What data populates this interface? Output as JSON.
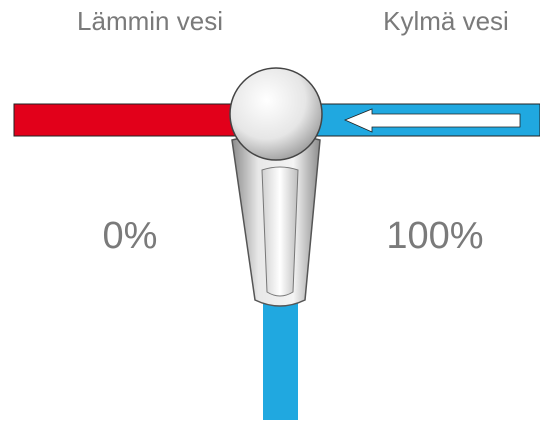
{
  "labels": {
    "hot_water": "Lämmin vesi",
    "cold_water": "Kylmä vesi",
    "hot_share": "0%",
    "cold_share": "100%"
  }
}
